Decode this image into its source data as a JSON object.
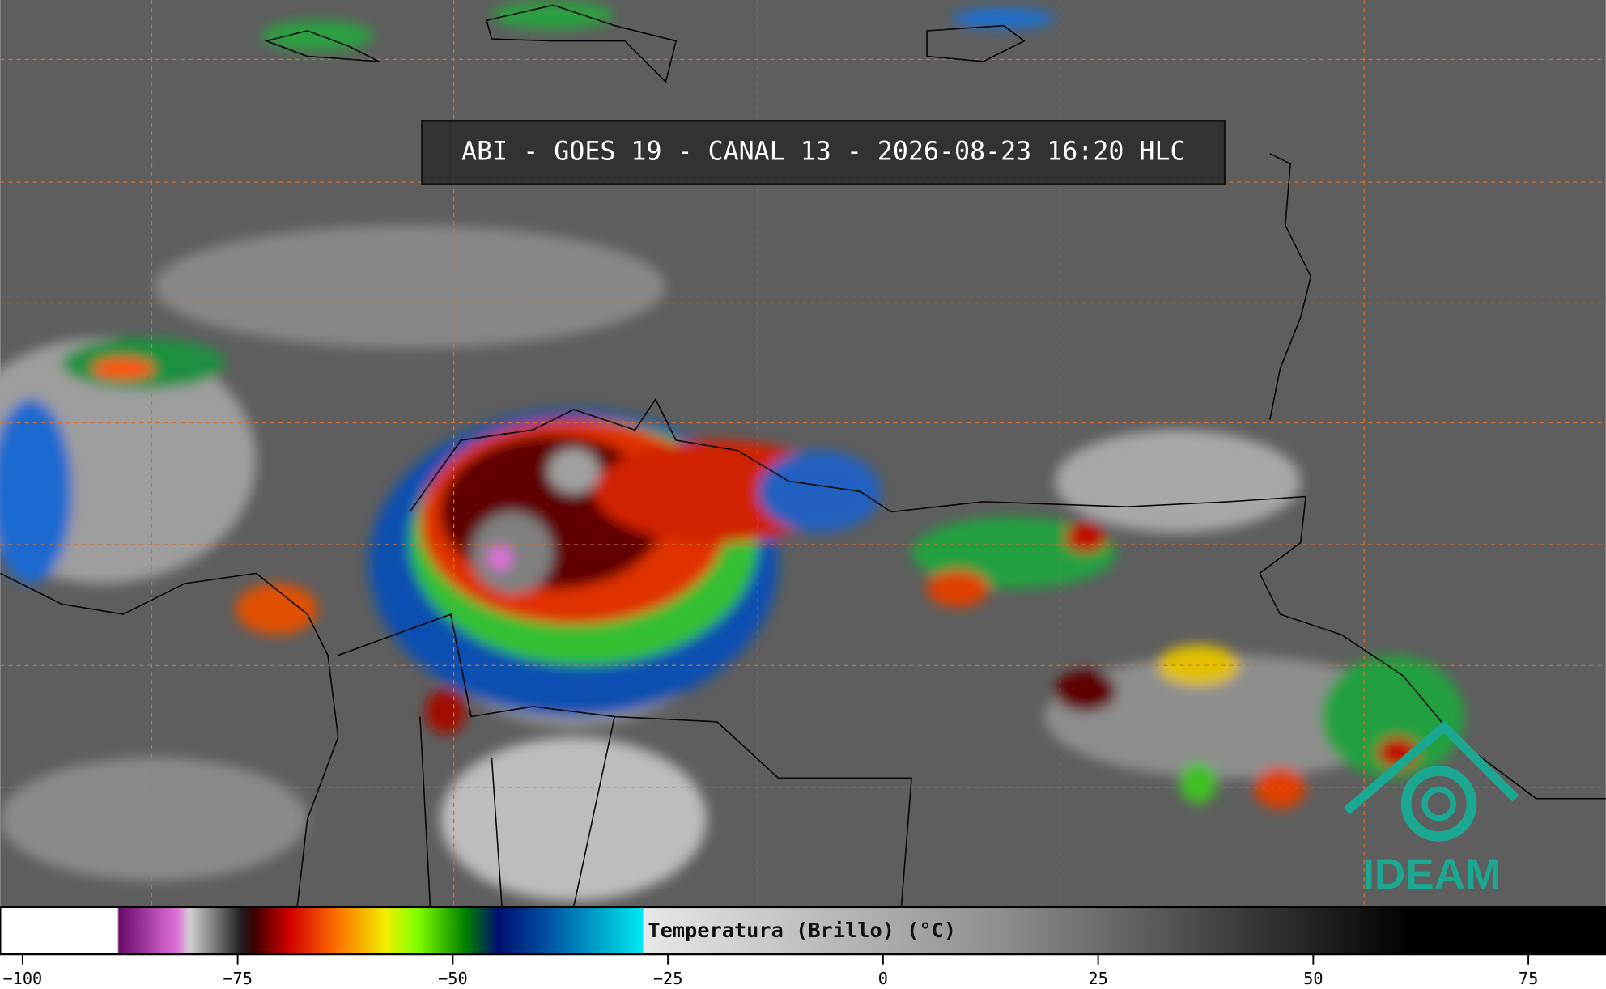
{
  "title": "ABI - GOES 19 - CANAL 13 - 2026-08-23 16:20 HLC",
  "colorbar": {
    "label": "Temperatura (Brillo) (°C)",
    "lim": [
      -102.6,
      84
    ],
    "ticks": [
      {
        "value": -100,
        "label": "−100"
      },
      {
        "value": -75,
        "label": "−75"
      },
      {
        "value": -50,
        "label": "−50"
      },
      {
        "value": -25,
        "label": "−25"
      },
      0,
      25,
      50,
      75
    ]
  },
  "logo": "IDEAM"
}
